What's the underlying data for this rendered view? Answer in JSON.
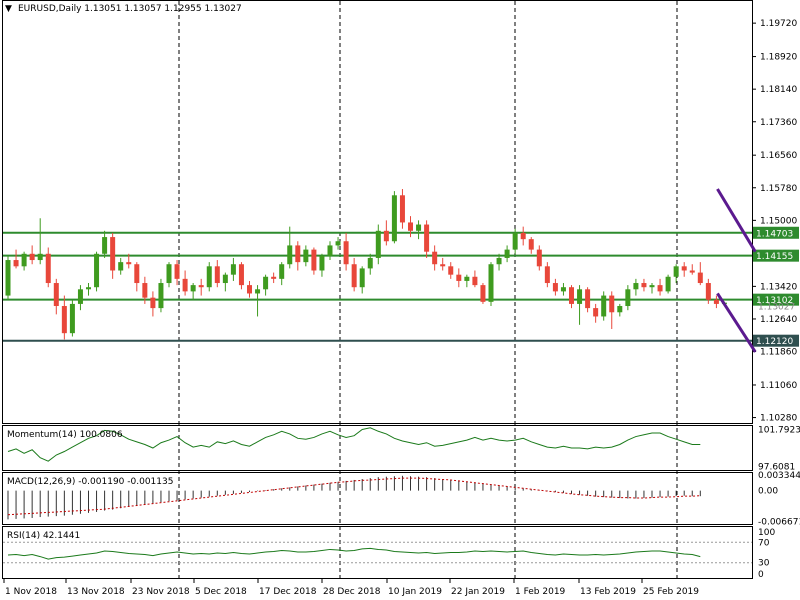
{
  "chart_data": {
    "type": "candlestick",
    "symbol_line": "EURUSD,Daily  1.13051 1.13057 1.12955 1.13027",
    "price_axis": {
      "range": [
        1.1015,
        1.2025
      ],
      "ticks": [
        "1.19720",
        "1.18920",
        "1.18140",
        "1.17360",
        "1.16560",
        "1.15780",
        "1.15000",
        "1.14200",
        "1.13420",
        "1.12640",
        "1.11860",
        "1.11060",
        "1.10280"
      ]
    },
    "date_labels": [
      "1 Nov 2018",
      "13 Nov 2018",
      "23 Nov 2018",
      "5 Dec 2018",
      "17 Dec 2018",
      "28 Dec 2018",
      "10 Jan 2019",
      "22 Jan 2019",
      "1 Feb 2019",
      "13 Feb 2019",
      "25 Feb 2019"
    ],
    "horizontal_levels": [
      {
        "label": "1.14703",
        "value": 1.14703,
        "color": "#2e8b2e"
      },
      {
        "label": "1.14155",
        "value": 1.14155,
        "color": "#2e8b2e"
      },
      {
        "label": "1.13102",
        "value": 1.13102,
        "color": "#2e8b2e"
      },
      {
        "label": "1.12120",
        "value": 1.1212,
        "color": "#2f4f4f"
      }
    ],
    "partial_label": "1.13027",
    "channel_lines": [
      {
        "from": [
          49,
          1.1575
        ],
        "to": [
          86,
          1.1425
        ]
      },
      {
        "from": [
          49,
          1.1325
        ],
        "to": [
          86,
          1.1185
        ]
      }
    ],
    "candles": [
      [
        1.132,
        1.1415,
        1.131,
        1.1405
      ],
      [
        1.1405,
        1.143,
        1.1385,
        1.139
      ],
      [
        1.139,
        1.1425,
        1.138,
        1.142
      ],
      [
        1.142,
        1.144,
        1.1395,
        1.1405
      ],
      [
        1.1405,
        1.1505,
        1.1395,
        1.142
      ],
      [
        1.142,
        1.1435,
        1.134,
        1.135
      ],
      [
        1.135,
        1.136,
        1.1275,
        1.1295
      ],
      [
        1.1295,
        1.132,
        1.1215,
        1.123
      ],
      [
        1.123,
        1.131,
        1.1222,
        1.13
      ],
      [
        1.13,
        1.1345,
        1.1285,
        1.1335
      ],
      [
        1.1335,
        1.135,
        1.132,
        1.134
      ],
      [
        1.134,
        1.1425,
        1.133,
        1.142
      ],
      [
        1.142,
        1.1475,
        1.141,
        1.146
      ],
      [
        1.146,
        1.147,
        1.136,
        1.138
      ],
      [
        1.138,
        1.141,
        1.137,
        1.14
      ],
      [
        1.14,
        1.142,
        1.1385,
        1.1395
      ],
      [
        1.1395,
        1.14,
        1.133,
        1.135
      ],
      [
        1.135,
        1.1365,
        1.13,
        1.1315
      ],
      [
        1.1315,
        1.133,
        1.127,
        1.129
      ],
      [
        1.129,
        1.136,
        1.128,
        1.135
      ],
      [
        1.135,
        1.14,
        1.134,
        1.1395
      ],
      [
        1.1395,
        1.1405,
        1.1345,
        1.136
      ],
      [
        1.136,
        1.138,
        1.132,
        1.133
      ],
      [
        1.133,
        1.135,
        1.131,
        1.1345
      ],
      [
        1.1345,
        1.136,
        1.132,
        1.134
      ],
      [
        1.134,
        1.14,
        1.133,
        1.139
      ],
      [
        1.139,
        1.1405,
        1.134,
        1.135
      ],
      [
        1.135,
        1.1375,
        1.133,
        1.137
      ],
      [
        1.137,
        1.141,
        1.1355,
        1.1395
      ],
      [
        1.1395,
        1.14,
        1.1335,
        1.1345
      ],
      [
        1.1345,
        1.1355,
        1.1315,
        1.1325
      ],
      [
        1.1325,
        1.1345,
        1.127,
        1.1335
      ],
      [
        1.1335,
        1.137,
        1.132,
        1.1365
      ],
      [
        1.1365,
        1.1375,
        1.135,
        1.136
      ],
      [
        1.136,
        1.14,
        1.1345,
        1.1395
      ],
      [
        1.1395,
        1.1485,
        1.1385,
        1.144
      ],
      [
        1.144,
        1.145,
        1.138,
        1.14
      ],
      [
        1.14,
        1.144,
        1.139,
        1.143
      ],
      [
        1.143,
        1.1435,
        1.137,
        1.138
      ],
      [
        1.138,
        1.142,
        1.1365,
        1.1415
      ],
      [
        1.1415,
        1.145,
        1.1405,
        1.144
      ],
      [
        1.144,
        1.146,
        1.143,
        1.145
      ],
      [
        1.145,
        1.147,
        1.138,
        1.1395
      ],
      [
        1.1395,
        1.141,
        1.133,
        1.134
      ],
      [
        1.134,
        1.139,
        1.1325,
        1.1385
      ],
      [
        1.1385,
        1.142,
        1.137,
        1.141
      ],
      [
        1.141,
        1.149,
        1.1395,
        1.1475
      ],
      [
        1.1475,
        1.15,
        1.144,
        1.145
      ],
      [
        1.145,
        1.157,
        1.1445,
        1.156
      ],
      [
        1.156,
        1.1575,
        1.148,
        1.1495
      ],
      [
        1.1495,
        1.151,
        1.146,
        1.1475
      ],
      [
        1.1475,
        1.15,
        1.1455,
        1.149
      ],
      [
        1.149,
        1.15,
        1.141,
        1.1425
      ],
      [
        1.1425,
        1.144,
        1.138,
        1.1395
      ],
      [
        1.1395,
        1.141,
        1.138,
        1.139
      ],
      [
        1.139,
        1.14,
        1.136,
        1.137
      ],
      [
        1.137,
        1.1385,
        1.134,
        1.1355
      ],
      [
        1.1355,
        1.137,
        1.134,
        1.1365
      ],
      [
        1.1365,
        1.138,
        1.134,
        1.1345
      ],
      [
        1.1345,
        1.135,
        1.13,
        1.1305
      ],
      [
        1.1305,
        1.14,
        1.1295,
        1.1395
      ],
      [
        1.1395,
        1.142,
        1.138,
        1.141
      ],
      [
        1.141,
        1.144,
        1.14,
        1.143
      ],
      [
        1.143,
        1.148,
        1.142,
        1.147
      ],
      [
        1.147,
        1.1485,
        1.144,
        1.1455
      ],
      [
        1.1455,
        1.146,
        1.142,
        1.143
      ],
      [
        1.143,
        1.144,
        1.138,
        1.139
      ],
      [
        1.139,
        1.14,
        1.134,
        1.135
      ],
      [
        1.135,
        1.136,
        1.132,
        1.133
      ],
      [
        1.133,
        1.135,
        1.132,
        1.134
      ],
      [
        1.134,
        1.1345,
        1.129,
        1.13
      ],
      [
        1.13,
        1.1345,
        1.125,
        1.1335
      ],
      [
        1.1335,
        1.134,
        1.128,
        1.129
      ],
      [
        1.129,
        1.13,
        1.1255,
        1.127
      ],
      [
        1.127,
        1.133,
        1.126,
        1.132
      ],
      [
        1.132,
        1.133,
        1.124,
        1.128
      ],
      [
        1.128,
        1.13,
        1.127,
        1.1295
      ],
      [
        1.1295,
        1.1345,
        1.1285,
        1.1335
      ],
      [
        1.1335,
        1.136,
        1.132,
        1.135
      ],
      [
        1.135,
        1.136,
        1.133,
        1.134
      ],
      [
        1.134,
        1.135,
        1.1325,
        1.1345
      ],
      [
        1.1345,
        1.136,
        1.132,
        1.133
      ],
      [
        1.133,
        1.137,
        1.1325,
        1.1365
      ],
      [
        1.1365,
        1.1395,
        1.135,
        1.139
      ],
      [
        1.139,
        1.14,
        1.1365,
        1.138
      ],
      [
        1.138,
        1.1395,
        1.137,
        1.1375
      ],
      [
        1.1375,
        1.14,
        1.1345,
        1.135
      ],
      [
        1.135,
        1.136,
        1.13,
        1.131
      ],
      [
        1.131,
        1.132,
        1.129,
        1.13
      ],
      [
        1.13,
        1.1305,
        1.1295,
        1.1303
      ]
    ],
    "momentum": {
      "label": "Momentum(14) 100.0806",
      "ticks": [
        "101.7923",
        "97.6081"
      ],
      "range": [
        97.2,
        102.2
      ],
      "values": [
        99.3,
        99.6,
        99.1,
        99.5,
        98.6,
        98.2,
        98.9,
        99.3,
        99.8,
        100.3,
        100.8,
        101.1,
        101.7,
        101.6,
        101.2,
        100.7,
        100.4,
        100.1,
        99.7,
        100.3,
        100.6,
        101.0,
        100.3,
        99.8,
        100.0,
        99.8,
        100.4,
        100.2,
        100.5,
        100.1,
        99.9,
        100.4,
        100.9,
        101.2,
        101.6,
        101.3,
        100.8,
        100.7,
        100.9,
        101.3,
        101.6,
        101.2,
        100.9,
        101.1,
        101.8,
        102.0,
        101.6,
        101.3,
        100.8,
        100.5,
        100.3,
        100.1,
        100.3,
        99.9,
        100.0,
        100.2,
        100.4,
        100.6,
        100.9,
        100.6,
        100.8,
        100.6,
        100.5,
        100.6,
        100.8,
        100.4,
        100.1,
        99.8,
        99.7,
        99.9,
        99.7,
        99.7,
        99.6,
        99.8,
        99.7,
        99.8,
        100.1,
        100.6,
        101.0,
        101.2,
        101.4,
        101.4,
        101.0,
        100.7,
        100.4,
        100.1,
        100.1
      ]
    },
    "macd": {
      "label": "MACD(12,26,9) -0.001190 -0.001135",
      "ticks": [
        "0.003344",
        "0.00",
        "-0.006671"
      ],
      "range": [
        -0.0072,
        0.0038
      ],
      "hist": [
        -0.0062,
        -0.0061,
        -0.006,
        -0.0059,
        -0.0057,
        -0.0056,
        -0.0055,
        -0.0054,
        -0.0052,
        -0.005,
        -0.0048,
        -0.0046,
        -0.0043,
        -0.0041,
        -0.0038,
        -0.0035,
        -0.0033,
        -0.003,
        -0.0028,
        -0.0025,
        -0.0023,
        -0.0021,
        -0.0019,
        -0.0017,
        -0.0015,
        -0.0013,
        -0.0011,
        -0.0009,
        -0.0007,
        -0.0005,
        -0.0003,
        -0.0001,
        0.0001,
        0.0003,
        0.0005,
        0.0007,
        0.0009,
        0.0011,
        0.0013,
        0.0015,
        0.0017,
        0.0019,
        0.0021,
        0.0023,
        0.0025,
        0.0027,
        0.0029,
        0.003,
        0.0031,
        0.0032,
        0.0031,
        0.003,
        0.0029,
        0.0027,
        0.0025,
        0.0023,
        0.0021,
        0.0019,
        0.0017,
        0.0015,
        0.0013,
        0.0011,
        0.0009,
        0.0007,
        0.0005,
        0.0003,
        0.0001,
        -0.0001,
        -0.0003,
        -0.0005,
        -0.0007,
        -0.0009,
        -0.0011,
        -0.0013,
        -0.0014,
        -0.0015,
        -0.0016,
        -0.0017,
        -0.0017,
        -0.0016,
        -0.0015,
        -0.0014,
        -0.0013,
        -0.0012,
        -0.0011,
        -0.0012,
        -0.0012
      ],
      "signal": [
        -0.0052,
        -0.0051,
        -0.005,
        -0.0049,
        -0.0048,
        -0.0047,
        -0.0046,
        -0.0045,
        -0.0044,
        -0.0043,
        -0.0042,
        -0.0041,
        -0.004,
        -0.0038,
        -0.0036,
        -0.0034,
        -0.0032,
        -0.003,
        -0.0028,
        -0.0026,
        -0.0024,
        -0.0022,
        -0.002,
        -0.0018,
        -0.0016,
        -0.0014,
        -0.0012,
        -0.001,
        -0.0008,
        -0.0006,
        -0.0004,
        -0.0002,
        0.0,
        0.0002,
        0.0004,
        0.0006,
        0.0008,
        0.001,
        0.0012,
        0.0014,
        0.0016,
        0.0018,
        0.0019,
        0.0021,
        0.0022,
        0.0023,
        0.0024,
        0.0025,
        0.0026,
        0.0027,
        0.0027,
        0.0027,
        0.0026,
        0.0025,
        0.0024,
        0.0023,
        0.0021,
        0.0019,
        0.0017,
        0.0015,
        0.0013,
        0.0011,
        0.0009,
        0.0007,
        0.0005,
        0.0003,
        0.0001,
        -0.0001,
        -0.0003,
        -0.0005,
        -0.0007,
        -0.0009,
        -0.001,
        -0.0012,
        -0.0013,
        -0.0014,
        -0.0015,
        -0.0015,
        -0.0016,
        -0.0016,
        -0.0015,
        -0.0014,
        -0.0014,
        -0.0013,
        -0.0012,
        -0.0012,
        -0.0011
      ]
    },
    "rsi": {
      "label": "RSI(14) 42.1441",
      "ticks": [
        "100",
        "70",
        "30",
        "0"
      ],
      "levels": [
        70,
        30
      ],
      "values": [
        45,
        46,
        44,
        46,
        42,
        37,
        40,
        41,
        43,
        45,
        47,
        49,
        53,
        52,
        50,
        48,
        47,
        46,
        44,
        47,
        49,
        51,
        49,
        47,
        48,
        47,
        49,
        48,
        50,
        48,
        47,
        49,
        51,
        52,
        54,
        53,
        51,
        51,
        52,
        54,
        56,
        55,
        53,
        54,
        57,
        58,
        56,
        55,
        52,
        51,
        50,
        49,
        50,
        48,
        49,
        50,
        50,
        51,
        53,
        52,
        53,
        52,
        51,
        52,
        53,
        50,
        48,
        46,
        45,
        47,
        46,
        45,
        45,
        46,
        45,
        46,
        47,
        49,
        51,
        52,
        53,
        53,
        51,
        49,
        47,
        46,
        42
      ]
    },
    "colors": {
      "bull": "#3f9b1f",
      "bear": "#e8473a",
      "level": "#2e8b2e",
      "support": "#2f4f4f",
      "channel": "#5b1a8f",
      "indicator_line": "#1b7a1b",
      "signal": "#c00000",
      "grid": "#000000"
    }
  }
}
